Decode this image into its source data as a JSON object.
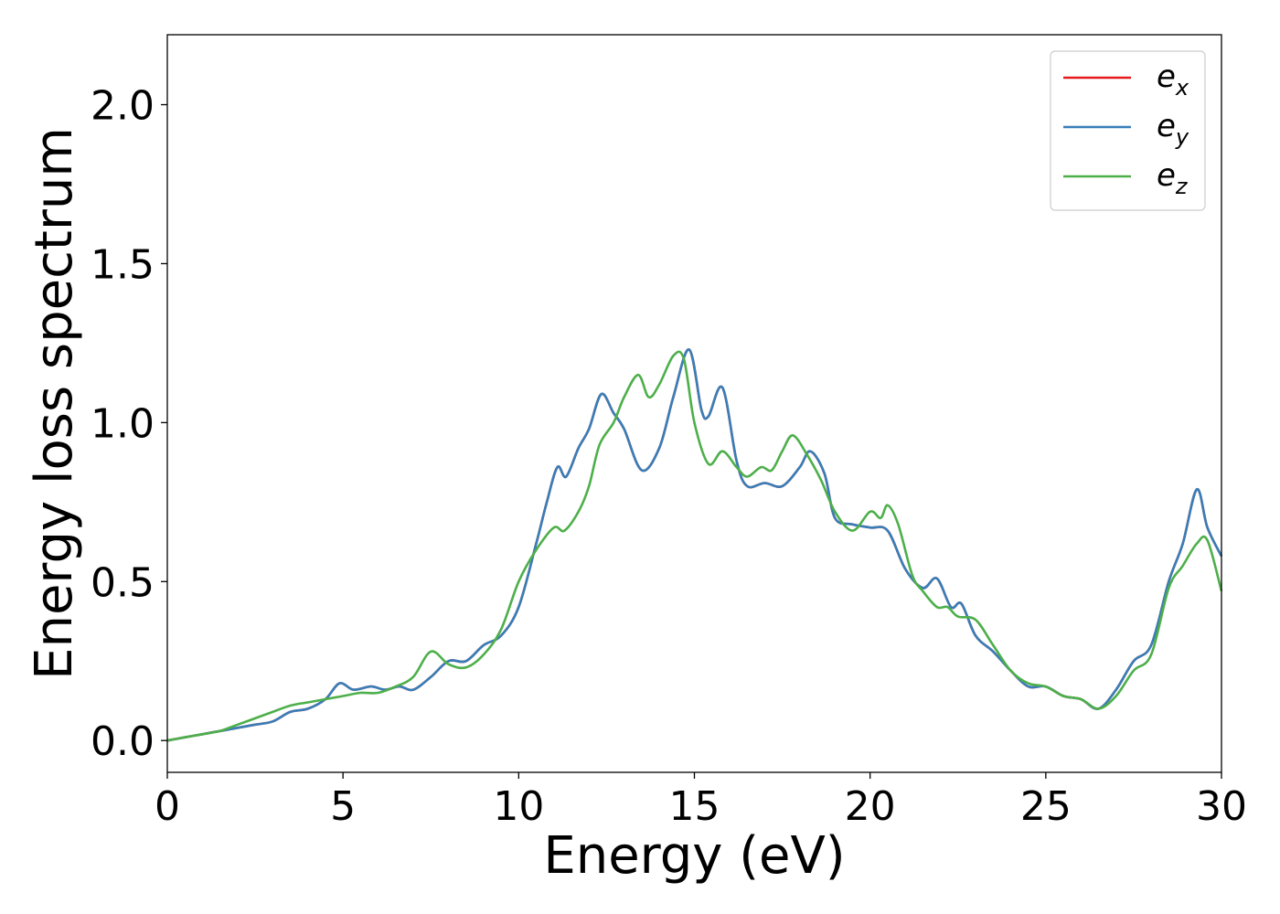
{
  "chart_data": {
    "type": "line",
    "xlabel": "Energy (eV)",
    "ylabel": "Energy loss spectrum",
    "xlim": [
      0,
      30
    ],
    "ylim": [
      -0.1,
      2.22
    ],
    "xticks": [
      0,
      5,
      10,
      15,
      20,
      25,
      30
    ],
    "xtick_labels": [
      "0",
      "5",
      "10",
      "15",
      "20",
      "25",
      "30"
    ],
    "yticks": [
      0.0,
      0.5,
      1.0,
      1.5,
      2.0
    ],
    "ytick_labels": [
      "0.0",
      "0.5",
      "1.0",
      "1.5",
      "2.0"
    ],
    "grid": false,
    "legend_position": "top-right",
    "series": [
      {
        "name": "e_x",
        "legend_base": "e",
        "legend_sub": "x",
        "color": "#e41a1c",
        "x": [
          0,
          0.5,
          1,
          1.5,
          2,
          2.5,
          3,
          3.5,
          4,
          4.5,
          4.9,
          5.3,
          5.8,
          6.2,
          6.6,
          7,
          7.5,
          8,
          8.5,
          9,
          9.5,
          10,
          10.5,
          10.8,
          11.1,
          11.35,
          11.7,
          12,
          12.35,
          12.7,
          13,
          13.5,
          14,
          14.4,
          14.85,
          15.2,
          15.4,
          15.8,
          16.2,
          16.5,
          17,
          17.5,
          18,
          18.3,
          18.7,
          19,
          19.5,
          20,
          20.5,
          21,
          21.5,
          21.9,
          22.3,
          22.6,
          23,
          23.5,
          24,
          24.5,
          25,
          25.5,
          26,
          26.5,
          27,
          27.5,
          28,
          28.5,
          28.9,
          29.3,
          29.6,
          30
        ],
        "y": [
          0.0,
          0.01,
          0.02,
          0.03,
          0.04,
          0.05,
          0.06,
          0.09,
          0.1,
          0.13,
          0.18,
          0.16,
          0.17,
          0.16,
          0.17,
          0.16,
          0.2,
          0.25,
          0.25,
          0.3,
          0.33,
          0.42,
          0.62,
          0.75,
          0.86,
          0.83,
          0.92,
          0.98,
          1.09,
          1.03,
          0.98,
          0.85,
          0.92,
          1.08,
          1.23,
          1.04,
          1.02,
          1.11,
          0.88,
          0.8,
          0.81,
          0.8,
          0.86,
          0.91,
          0.84,
          0.7,
          0.68,
          0.67,
          0.66,
          0.54,
          0.48,
          0.51,
          0.42,
          0.43,
          0.33,
          0.28,
          0.22,
          0.17,
          0.17,
          0.14,
          0.13,
          0.1,
          0.16,
          0.25,
          0.3,
          0.5,
          0.62,
          0.79,
          0.67,
          0.58
        ]
      },
      {
        "name": "e_y",
        "legend_base": "e",
        "legend_sub": "y",
        "color": "#377eb8",
        "x": [
          0,
          0.5,
          1,
          1.5,
          2,
          2.5,
          3,
          3.5,
          4,
          4.5,
          4.9,
          5.3,
          5.8,
          6.2,
          6.6,
          7,
          7.5,
          8,
          8.5,
          9,
          9.5,
          10,
          10.5,
          10.8,
          11.1,
          11.35,
          11.7,
          12,
          12.35,
          12.7,
          13,
          13.5,
          14,
          14.4,
          14.85,
          15.2,
          15.4,
          15.8,
          16.2,
          16.5,
          17,
          17.5,
          18,
          18.3,
          18.7,
          19,
          19.5,
          20,
          20.5,
          21,
          21.5,
          21.9,
          22.3,
          22.6,
          23,
          23.5,
          24,
          24.5,
          25,
          25.5,
          26,
          26.5,
          27,
          27.5,
          28,
          28.5,
          28.9,
          29.3,
          29.6,
          30
        ],
        "y": [
          0.0,
          0.01,
          0.02,
          0.03,
          0.04,
          0.05,
          0.06,
          0.09,
          0.1,
          0.13,
          0.18,
          0.16,
          0.17,
          0.16,
          0.17,
          0.16,
          0.2,
          0.25,
          0.25,
          0.3,
          0.33,
          0.42,
          0.62,
          0.75,
          0.86,
          0.83,
          0.92,
          0.98,
          1.09,
          1.03,
          0.98,
          0.85,
          0.92,
          1.08,
          1.23,
          1.04,
          1.02,
          1.11,
          0.88,
          0.8,
          0.81,
          0.8,
          0.86,
          0.91,
          0.84,
          0.7,
          0.68,
          0.67,
          0.66,
          0.54,
          0.48,
          0.51,
          0.42,
          0.43,
          0.33,
          0.28,
          0.22,
          0.17,
          0.17,
          0.14,
          0.13,
          0.1,
          0.16,
          0.25,
          0.3,
          0.5,
          0.62,
          0.79,
          0.67,
          0.58
        ]
      },
      {
        "name": "e_z",
        "legend_base": "e",
        "legend_sub": "z",
        "color": "#4daf4a",
        "x": [
          0,
          0.5,
          1,
          1.5,
          2,
          2.5,
          3,
          3.5,
          4,
          4.5,
          5,
          5.5,
          6,
          6.5,
          7,
          7.5,
          8,
          8.5,
          9,
          9.5,
          10,
          10.5,
          11,
          11.3,
          11.7,
          12,
          12.3,
          12.7,
          13,
          13.4,
          13.7,
          14,
          14.4,
          14.7,
          15,
          15.4,
          15.8,
          16.2,
          16.5,
          16.9,
          17.2,
          17.5,
          17.8,
          18.2,
          18.6,
          19,
          19.5,
          20,
          20.3,
          20.5,
          20.8,
          21.2,
          21.5,
          21.9,
          22.2,
          22.5,
          23,
          23.5,
          24,
          24.5,
          25,
          25.5,
          26,
          26.5,
          27,
          27.5,
          28,
          28.5,
          28.9,
          29.3,
          29.6,
          30
        ],
        "y": [
          0.0,
          0.01,
          0.02,
          0.03,
          0.05,
          0.07,
          0.09,
          0.11,
          0.12,
          0.13,
          0.14,
          0.15,
          0.15,
          0.17,
          0.2,
          0.28,
          0.24,
          0.23,
          0.27,
          0.35,
          0.5,
          0.6,
          0.67,
          0.66,
          0.72,
          0.8,
          0.93,
          1.0,
          1.08,
          1.15,
          1.08,
          1.12,
          1.21,
          1.2,
          1.0,
          0.87,
          0.91,
          0.86,
          0.83,
          0.86,
          0.85,
          0.91,
          0.96,
          0.9,
          0.82,
          0.72,
          0.66,
          0.72,
          0.7,
          0.74,
          0.68,
          0.52,
          0.47,
          0.42,
          0.42,
          0.39,
          0.38,
          0.3,
          0.22,
          0.18,
          0.17,
          0.14,
          0.13,
          0.1,
          0.14,
          0.22,
          0.27,
          0.48,
          0.55,
          0.62,
          0.63,
          0.47
        ]
      }
    ]
  }
}
